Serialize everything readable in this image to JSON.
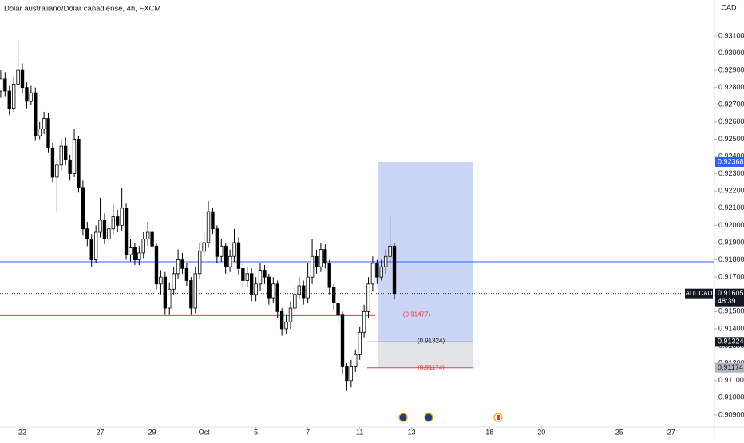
{
  "chart_data": {
    "type": "candlestick",
    "title": "Dólar australiano/Dólar canadiense, 4h, FXCM",
    "currency": "CAD",
    "symbol": "AUDCAD",
    "last_price": 0.91605,
    "countdown": "48:39",
    "up_color": "#ffffff",
    "down_color": "#000000",
    "wick_color": "#000000",
    "open": [
      0.9278,
      0.9285,
      0.9278,
      0.9268,
      0.9282,
      0.929,
      0.928,
      0.9272,
      0.9277,
      0.9252,
      0.9256,
      0.9262,
      0.9245,
      0.9228,
      0.9235,
      0.9246,
      0.9238,
      0.923,
      0.925,
      0.9222,
      0.9198,
      0.9192,
      0.918,
      0.9196,
      0.9203,
      0.9192,
      0.9198,
      0.9205,
      0.92,
      0.921,
      0.9183,
      0.9187,
      0.918,
      0.9184,
      0.9192,
      0.9196,
      0.9188,
      0.9166,
      0.917,
      0.9152,
      0.9163,
      0.9172,
      0.918,
      0.9175,
      0.9168,
      0.9152,
      0.9172,
      0.9185,
      0.919,
      0.9208,
      0.9198,
      0.9182,
      0.9188,
      0.9176,
      0.9182,
      0.919,
      0.9175,
      0.9168,
      0.9172,
      0.916,
      0.9166,
      0.9174,
      0.917,
      0.9158,
      0.9166,
      0.915,
      0.914,
      0.9144,
      0.9152,
      0.916,
      0.9165,
      0.9158,
      0.917,
      0.9182,
      0.9176,
      0.9186,
      0.9178,
      0.9164,
      0.9155,
      0.9148,
      0.9118,
      0.911,
      0.9118,
      0.9125,
      0.9138,
      0.915,
      0.9166,
      0.9178,
      0.917,
      0.9176,
      0.9182,
      0.9188
    ],
    "high": [
      0.929,
      0.9289,
      0.9281,
      0.9286,
      0.9307,
      0.9294,
      0.9283,
      0.9281,
      0.928,
      0.926,
      0.9266,
      0.9265,
      0.9248,
      0.9239,
      0.925,
      0.9251,
      0.9241,
      0.9256,
      0.9252,
      0.9226,
      0.9202,
      0.9195,
      0.92,
      0.9216,
      0.9207,
      0.9202,
      0.9212,
      0.9209,
      0.9222,
      0.9213,
      0.9192,
      0.919,
      0.9188,
      0.9196,
      0.9202,
      0.92,
      0.919,
      0.9174,
      0.9173,
      0.9167,
      0.9176,
      0.9186,
      0.9184,
      0.9178,
      0.917,
      0.9176,
      0.919,
      0.9196,
      0.9214,
      0.921,
      0.92,
      0.9192,
      0.919,
      0.9186,
      0.9198,
      0.9193,
      0.9178,
      0.9176,
      0.9175,
      0.917,
      0.9178,
      0.9177,
      0.9172,
      0.917,
      0.9168,
      0.9152,
      0.9148,
      0.9156,
      0.9164,
      0.917,
      0.9168,
      0.9178,
      0.9192,
      0.9186,
      0.919,
      0.9189,
      0.918,
      0.9166,
      0.9158,
      0.915,
      0.912,
      0.9122,
      0.9128,
      0.9141,
      0.9154,
      0.917,
      0.9182,
      0.918,
      0.918,
      0.9186,
      0.9206,
      0.919
    ],
    "low": [
      0.9274,
      0.9275,
      0.9264,
      0.9266,
      0.9279,
      0.9277,
      0.9268,
      0.927,
      0.9249,
      0.925,
      0.9253,
      0.9242,
      0.9225,
      0.9208,
      0.9232,
      0.9235,
      0.9226,
      0.9228,
      0.9219,
      0.9194,
      0.9188,
      0.9176,
      0.9178,
      0.9193,
      0.9189,
      0.9189,
      0.9195,
      0.9196,
      0.9197,
      0.918,
      0.9179,
      0.9177,
      0.9177,
      0.9181,
      0.9188,
      0.9185,
      0.9163,
      0.916,
      0.9148,
      0.9148,
      0.916,
      0.9169,
      0.9172,
      0.9165,
      0.9148,
      0.9149,
      0.9169,
      0.9182,
      0.9187,
      0.9195,
      0.9178,
      0.9179,
      0.9172,
      0.9173,
      0.9179,
      0.9171,
      0.9164,
      0.9164,
      0.9156,
      0.9156,
      0.9162,
      0.9166,
      0.9154,
      0.9155,
      0.9146,
      0.9136,
      0.9137,
      0.914,
      0.9149,
      0.9157,
      0.9154,
      0.9155,
      0.9166,
      0.9172,
      0.9173,
      0.9175,
      0.916,
      0.9151,
      0.9144,
      0.9114,
      0.9104,
      0.9106,
      0.9115,
      0.9122,
      0.9135,
      0.9146,
      0.9162,
      0.9166,
      0.9168,
      0.9172,
      0.9178,
      0.9157
    ],
    "close": [
      0.9285,
      0.9278,
      0.9268,
      0.9282,
      0.929,
      0.928,
      0.9272,
      0.9277,
      0.9252,
      0.9256,
      0.9262,
      0.9245,
      0.9228,
      0.9235,
      0.9246,
      0.9238,
      0.923,
      0.925,
      0.9222,
      0.9198,
      0.9192,
      0.918,
      0.9196,
      0.9203,
      0.9192,
      0.9198,
      0.9205,
      0.92,
      0.921,
      0.9183,
      0.9187,
      0.918,
      0.9184,
      0.9192,
      0.9196,
      0.9188,
      0.9166,
      0.917,
      0.9152,
      0.9163,
      0.9172,
      0.918,
      0.9175,
      0.9168,
      0.9152,
      0.9172,
      0.9185,
      0.919,
      0.9208,
      0.9198,
      0.9182,
      0.9188,
      0.9176,
      0.9182,
      0.919,
      0.9175,
      0.9168,
      0.9172,
      0.916,
      0.9166,
      0.9174,
      0.917,
      0.9158,
      0.9166,
      0.915,
      0.914,
      0.9144,
      0.9152,
      0.916,
      0.9165,
      0.9158,
      0.917,
      0.9182,
      0.9176,
      0.9186,
      0.9178,
      0.9164,
      0.9155,
      0.9148,
      0.9118,
      0.911,
      0.9118,
      0.9125,
      0.9138,
      0.915,
      0.9166,
      0.9178,
      0.917,
      0.9176,
      0.9182,
      0.9188,
      0.91605
    ],
    "xlim": [
      -0.17,
      165
    ],
    "xticks": [
      {
        "value": 5,
        "label": "22"
      },
      {
        "value": 23,
        "label": "27"
      },
      {
        "value": 35,
        "label": "29"
      },
      {
        "value": 47,
        "label": "Oct"
      },
      {
        "value": 59,
        "label": "5"
      },
      {
        "value": 71,
        "label": "7"
      },
      {
        "value": 83,
        "label": "11"
      },
      {
        "value": 95,
        "label": "13"
      },
      {
        "value": 113,
        "label": "18"
      },
      {
        "value": 125,
        "label": "20"
      },
      {
        "value": 143,
        "label": "25"
      },
      {
        "value": 155,
        "label": "27"
      }
    ],
    "ylim": [
      0.9083,
      0.93308
    ],
    "yticks": [
      {
        "value": 0.909,
        "label": "0.90900"
      },
      {
        "value": 0.91,
        "label": "0.91000"
      },
      {
        "value": 0.911,
        "label": "0.91100"
      },
      {
        "value": 0.912,
        "label": "0.91200"
      },
      {
        "value": 0.913,
        "label": "0.91300"
      },
      {
        "value": 0.914,
        "label": "0.91400"
      },
      {
        "value": 0.915,
        "label": "0.91500"
      },
      {
        "value": 0.916,
        "label": "0.91600"
      },
      {
        "value": 0.917,
        "label": "0.91700"
      },
      {
        "value": 0.918,
        "label": "0.91800"
      },
      {
        "value": 0.919,
        "label": "0.91900"
      },
      {
        "value": 0.92,
        "label": "0.92000"
      },
      {
        "value": 0.921,
        "label": "0.92100"
      },
      {
        "value": 0.922,
        "label": "0.92200"
      },
      {
        "value": 0.923,
        "label": "0.92300"
      },
      {
        "value": 0.924,
        "label": "0.92400"
      },
      {
        "value": 0.925,
        "label": "0.92500"
      },
      {
        "value": 0.926,
        "label": "0.92600"
      },
      {
        "value": 0.927,
        "label": "0.92700"
      },
      {
        "value": 0.928,
        "label": "0.92800"
      },
      {
        "value": 0.929,
        "label": "0.92900"
      },
      {
        "value": 0.93,
        "label": "0.93000"
      },
      {
        "value": 0.931,
        "label": "0.93100"
      }
    ],
    "horizontal_lines": [
      {
        "value": 0.91789,
        "color": "#2962ff"
      },
      {
        "value": {
          "value": 0.91477,
          "label": "(0.91477)"
        },
        "color": "#f23645"
      }
    ],
    "position": {
      "target": 0.92368,
      "entry": {
        "value": 0.91324,
        "label": "(0.91324)"
      },
      "stop": {
        "value": 0.91174,
        "label": "(0.91174)"
      },
      "color": "#c5d1f5"
    }
  }
}
